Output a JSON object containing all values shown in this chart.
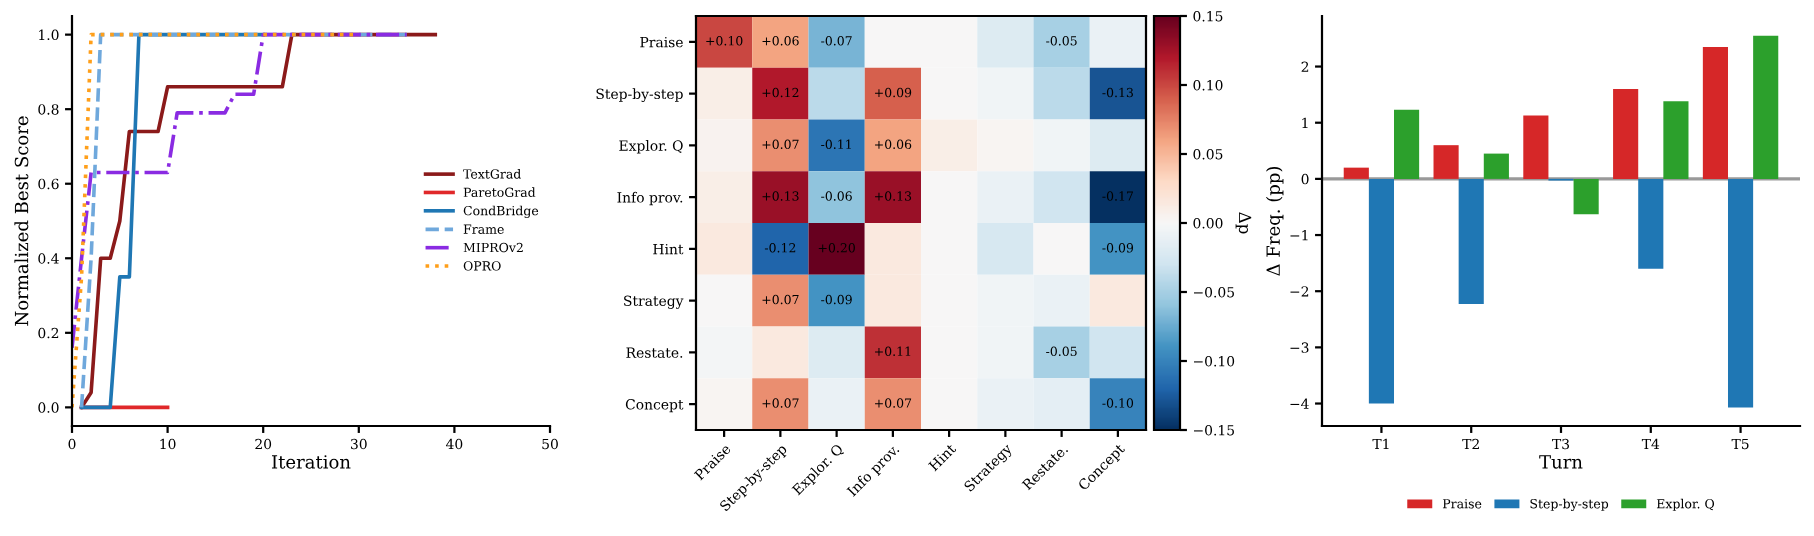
{
  "chart_data": [
    {
      "type": "line",
      "xlabel": "Iteration",
      "ylabel": "Normalized Best Score",
      "xlim": [
        0,
        50
      ],
      "ylim": [
        -0.05,
        1.05
      ],
      "xticks": [
        0,
        10,
        20,
        30,
        40,
        50
      ],
      "yticks": [
        {
          "value": 0,
          "label": "0.0"
        },
        {
          "value": 0.2,
          "label": "0.2"
        },
        {
          "value": 0.4,
          "label": "0.4"
        },
        {
          "value": 0.6,
          "label": "0.6"
        },
        {
          "value": 0.8,
          "label": "0.8"
        },
        {
          "value": 1,
          "label": "1.0"
        }
      ],
      "grid": false,
      "legend": "right",
      "series": [
        {
          "name": "TextGrad",
          "color": "#8b1a1a",
          "line_style": "solid",
          "x": [
            1,
            2,
            3,
            4,
            5,
            6,
            9,
            10,
            22,
            23,
            38
          ],
          "values": [
            0,
            0.04,
            0.4,
            0.4,
            0.5,
            0.74,
            0.74,
            0.86,
            0.86,
            1.0,
            1.0
          ]
        },
        {
          "name": "ParetoGrad",
          "color": "#e0282a",
          "line_style": "solid",
          "x": [
            1,
            10
          ],
          "values": [
            0,
            0
          ]
        },
        {
          "name": "CondBridge",
          "color": "#1f77b4",
          "line_style": "solid",
          "x": [
            1,
            4,
            5,
            6,
            7,
            20
          ],
          "values": [
            0,
            0,
            0.35,
            0.35,
            1.0,
            1.0
          ]
        },
        {
          "name": "Frame",
          "color": "#6fa8dc",
          "line_style": "dashed",
          "x": [
            1,
            2,
            3,
            35
          ],
          "values": [
            0,
            0.4,
            1.0,
            1.0
          ]
        },
        {
          "name": "MIPROv2",
          "color": "#8a2be2",
          "line_style": "dashdot",
          "x": [
            0,
            1,
            2,
            10,
            11,
            16,
            17,
            19,
            20,
            35
          ],
          "values": [
            0.16,
            0.4,
            0.63,
            0.63,
            0.79,
            0.79,
            0.84,
            0.84,
            1.0,
            1.0
          ]
        },
        {
          "name": "OPRO",
          "color": "#ff9f1a",
          "line_style": "dotted",
          "x": [
            0,
            1,
            2,
            30
          ],
          "values": [
            0.0,
            0.35,
            1.0,
            1.0
          ]
        }
      ]
    },
    {
      "type": "heatmap",
      "clabel": "Δp",
      "categories": [
        "Praise",
        "Step-by-step",
        "Explor. Q",
        "Info prov.",
        "Hint",
        "Strategy",
        "Restate.",
        "Concept"
      ],
      "y_categories": [
        "Praise",
        "Step-by-step",
        "Explor. Q",
        "Info prov.",
        "Hint",
        "Strategy",
        "Restate.",
        "Concept"
      ],
      "cells": [
        [
          0.1,
          0.06,
          -0.07,
          0.0,
          0.0,
          -0.02,
          -0.05,
          -0.01
        ],
        [
          0.01,
          0.12,
          -0.04,
          0.09,
          0.0,
          -0.005,
          -0.04,
          -0.13
        ],
        [
          0.005,
          0.07,
          -0.11,
          0.06,
          0.01,
          0.003,
          -0.005,
          -0.02
        ],
        [
          0.01,
          0.13,
          -0.06,
          0.13,
          0.0,
          -0.01,
          -0.03,
          -0.17
        ],
        [
          0.015,
          -0.12,
          0.2,
          0.015,
          0.0,
          -0.025,
          0.0,
          -0.09
        ],
        [
          0.0,
          0.07,
          -0.09,
          0.015,
          0.0,
          -0.005,
          -0.01,
          0.015
        ],
        [
          -0.003,
          0.015,
          -0.02,
          0.11,
          0.0,
          -0.005,
          -0.05,
          -0.03
        ],
        [
          0.003,
          0.07,
          -0.01,
          0.07,
          0.0,
          -0.01,
          -0.015,
          -0.1
        ]
      ],
      "cell_labels": [
        [
          "+0.10",
          "+0.06",
          "-0.07",
          null,
          null,
          null,
          "-0.05",
          null
        ],
        [
          null,
          "+0.12",
          null,
          "+0.09",
          null,
          null,
          null,
          "-0.13"
        ],
        [
          null,
          "+0.07",
          "-0.11",
          "+0.06",
          null,
          null,
          null,
          null
        ],
        [
          null,
          "+0.13",
          "-0.06",
          "+0.13",
          null,
          null,
          null,
          "-0.17"
        ],
        [
          null,
          "-0.12",
          "+0.20",
          null,
          null,
          null,
          null,
          "-0.09"
        ],
        [
          null,
          "+0.07",
          "-0.09",
          null,
          null,
          null,
          null,
          null
        ],
        [
          null,
          null,
          null,
          "+0.11",
          null,
          null,
          "-0.05",
          null
        ],
        [
          null,
          "+0.07",
          null,
          "+0.07",
          null,
          null,
          null,
          "-0.10"
        ]
      ],
      "clim": [
        -0.15,
        0.15
      ],
      "cticks": [
        {
          "value": -0.15,
          "label": "−0.15"
        },
        {
          "value": -0.1,
          "label": "−0.10"
        },
        {
          "value": -0.05,
          "label": "−0.05"
        },
        {
          "value": 0,
          "label": "0.00"
        },
        {
          "value": 0.05,
          "label": "0.05"
        },
        {
          "value": 0.1,
          "label": "0.10"
        },
        {
          "value": 0.15,
          "label": "0.15"
        }
      ]
    },
    {
      "type": "bar",
      "xlabel": "Turn",
      "ylabel": "Δ Freq. (pp)",
      "categories": [
        "T1",
        "T2",
        "T3",
        "T4",
        "T5"
      ],
      "ylim": [
        -4.4,
        2.9
      ],
      "yticks": [
        {
          "value": -4,
          "label": "−4"
        },
        {
          "value": -3,
          "label": "−3"
        },
        {
          "value": -2,
          "label": "−2"
        },
        {
          "value": -1,
          "label": "−1"
        },
        0,
        1,
        2
      ],
      "grid": false,
      "legend": "bottom",
      "ref_lines": [
        {
          "axis": "y",
          "value": 0,
          "label": null,
          "color": "#999999"
        }
      ],
      "series": [
        {
          "name": "Praise",
          "color": "#d62728",
          "values": [
            0.2,
            0.6,
            1.13,
            1.6,
            2.35
          ]
        },
        {
          "name": "Step-by-step",
          "color": "#1f77b4",
          "values": [
            -4.0,
            -2.23,
            -0.03,
            -1.6,
            -4.07
          ]
        },
        {
          "name": "Explor. Q",
          "color": "#2ca02c",
          "values": [
            1.23,
            0.45,
            -0.63,
            1.38,
            2.55
          ]
        }
      ]
    }
  ]
}
